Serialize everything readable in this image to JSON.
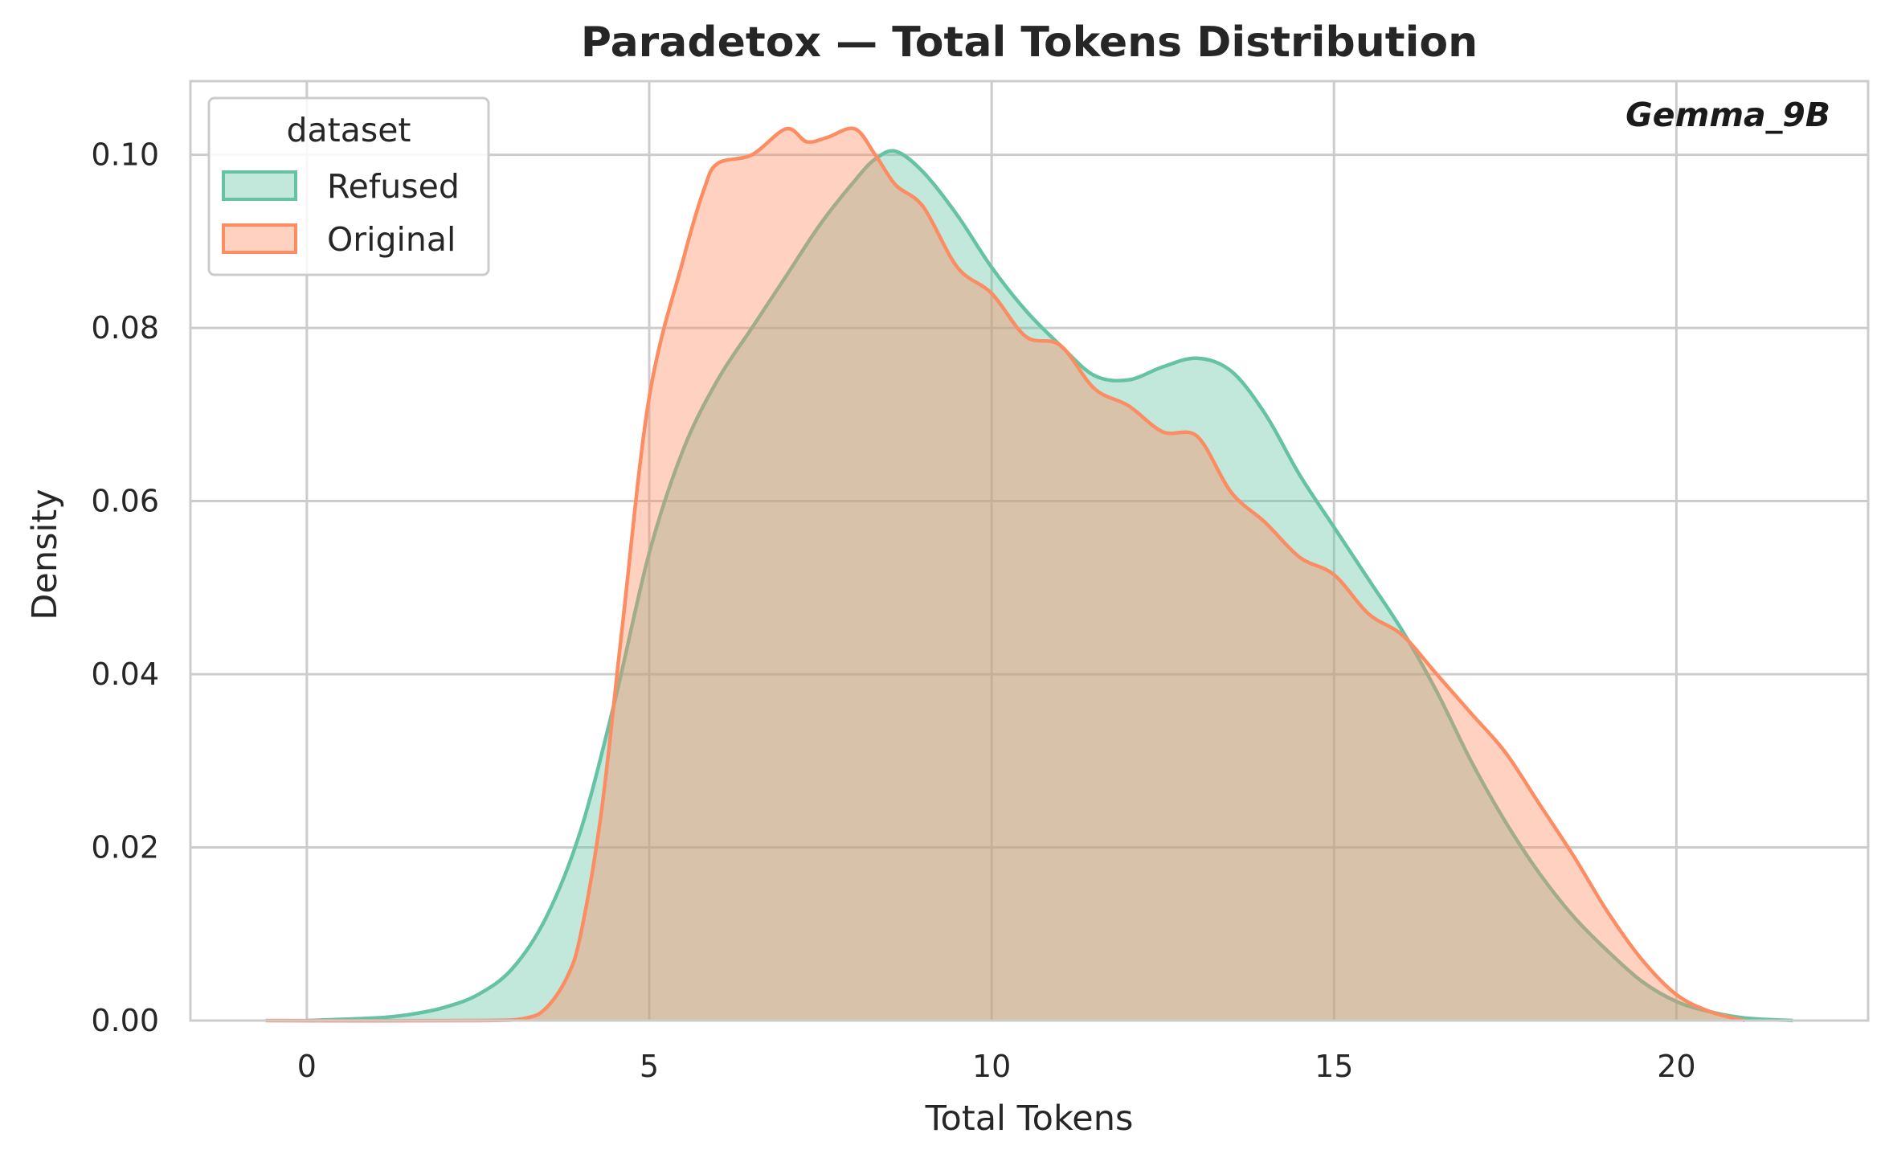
{
  "chart_data": {
    "type": "area",
    "title": "Paradetox — Total Tokens Distribution",
    "annotation": "Gemma_9B",
    "xlabel": "Total Tokens",
    "ylabel": "Density",
    "xlim": [
      -1.7,
      22.8
    ],
    "ylim": [
      0,
      0.1085
    ],
    "xticks": [
      0,
      5,
      10,
      15,
      20
    ],
    "xtick_labels": [
      "0",
      "5",
      "10",
      "15",
      "20"
    ],
    "yticks": [
      0,
      0.02,
      0.04,
      0.06,
      0.08,
      0.1
    ],
    "ytick_labels": [
      "0.00",
      "0.02",
      "0.04",
      "0.06",
      "0.08",
      "0.10"
    ],
    "grid": true,
    "legend": {
      "title": "dataset",
      "placement": "top-left"
    },
    "series": [
      {
        "name": "Refused",
        "color": "#66c2a5",
        "x": [
          0,
          1,
          1.5,
          2,
          2.5,
          3,
          3.5,
          4,
          4.5,
          5,
          5.5,
          6,
          6.5,
          7,
          7.5,
          8,
          8.3,
          8.6,
          9,
          9.5,
          10,
          10.5,
          11,
          11.5,
          12,
          12.5,
          13,
          13.5,
          14,
          14.5,
          15,
          15.5,
          16,
          16.5,
          17,
          17.5,
          18,
          18.5,
          19,
          19.5,
          20,
          20.5,
          21,
          21.7
        ],
        "y": [
          0,
          0.0003,
          0.0007,
          0.0015,
          0.003,
          0.006,
          0.012,
          0.022,
          0.037,
          0.054,
          0.066,
          0.074,
          0.08,
          0.086,
          0.092,
          0.097,
          0.0995,
          0.1004,
          0.098,
          0.093,
          0.087,
          0.082,
          0.078,
          0.0745,
          0.074,
          0.0755,
          0.0765,
          0.075,
          0.07,
          0.063,
          0.057,
          0.051,
          0.045,
          0.038,
          0.03,
          0.023,
          0.017,
          0.012,
          0.008,
          0.0045,
          0.0022,
          0.001,
          0.0003,
          0
        ]
      },
      {
        "name": "Original",
        "color": "#fc8d62",
        "x": [
          -0.6,
          2.5,
          3.2,
          3.5,
          3.8,
          4.0,
          4.3,
          4.6,
          5.0,
          5.5,
          5.8,
          6.0,
          6.5,
          7.0,
          7.3,
          7.6,
          8.0,
          8.3,
          8.6,
          9.0,
          9.5,
          10.0,
          10.5,
          11.0,
          11.5,
          12.0,
          12.5,
          13.0,
          13.5,
          14.0,
          14.5,
          15.0,
          15.5,
          16.0,
          16.5,
          17.0,
          17.5,
          18.0,
          18.5,
          19.0,
          19.5,
          20.0,
          20.5,
          21.0
        ],
        "y": [
          0,
          0,
          0.0003,
          0.0015,
          0.005,
          0.01,
          0.024,
          0.045,
          0.072,
          0.088,
          0.096,
          0.099,
          0.1,
          0.103,
          0.1015,
          0.102,
          0.103,
          0.1,
          0.0965,
          0.094,
          0.087,
          0.084,
          0.079,
          0.078,
          0.073,
          0.071,
          0.068,
          0.0675,
          0.061,
          0.0575,
          0.0535,
          0.0515,
          0.047,
          0.0445,
          0.04,
          0.0355,
          0.031,
          0.025,
          0.019,
          0.0125,
          0.007,
          0.003,
          0.001,
          0
        ]
      }
    ]
  }
}
